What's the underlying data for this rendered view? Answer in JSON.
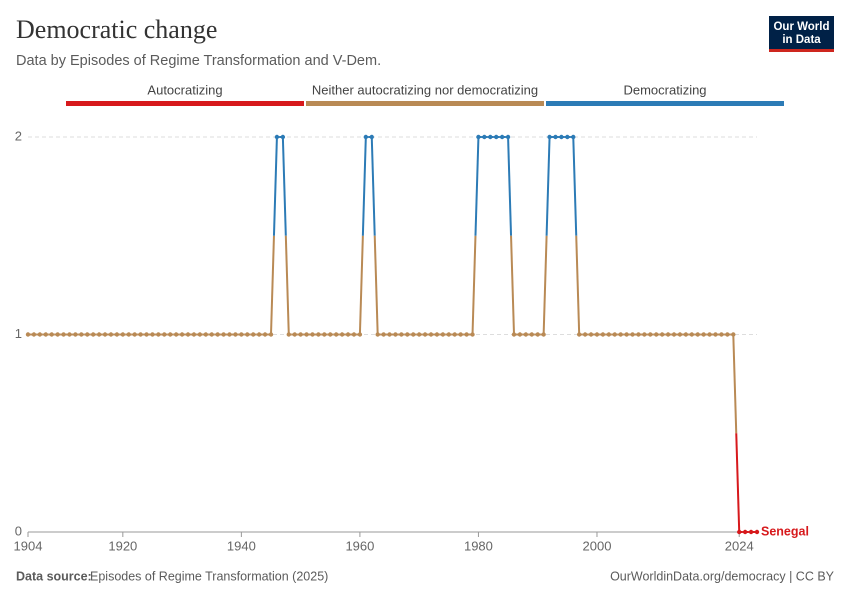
{
  "chart_data": {
    "type": "line",
    "title": "Democratic change",
    "subtitle": "Data by Episodes of Regime Transformation and V-Dem.",
    "logo": [
      "Our World",
      "in Data"
    ],
    "legend": [
      {
        "name": "Autocratizing",
        "color": "#d7191c"
      },
      {
        "name": "Neither autocratizing nor democratizing",
        "color": "#b98a55"
      },
      {
        "name": "Democratizing",
        "color": "#2c7bb6"
      }
    ],
    "x": [
      1904,
      1905,
      1906,
      1907,
      1908,
      1909,
      1910,
      1911,
      1912,
      1913,
      1914,
      1915,
      1916,
      1917,
      1918,
      1919,
      1920,
      1921,
      1922,
      1923,
      1924,
      1925,
      1926,
      1927,
      1928,
      1929,
      1930,
      1931,
      1932,
      1933,
      1934,
      1935,
      1936,
      1937,
      1938,
      1939,
      1940,
      1941,
      1942,
      1943,
      1944,
      1945,
      1946,
      1947,
      1948,
      1949,
      1950,
      1951,
      1952,
      1953,
      1954,
      1955,
      1956,
      1957,
      1958,
      1959,
      1960,
      1961,
      1962,
      1963,
      1964,
      1965,
      1966,
      1967,
      1968,
      1969,
      1970,
      1971,
      1972,
      1973,
      1974,
      1975,
      1976,
      1977,
      1978,
      1979,
      1980,
      1981,
      1982,
      1983,
      1984,
      1985,
      1986,
      1987,
      1988,
      1989,
      1990,
      1991,
      1992,
      1993,
      1994,
      1995,
      1996,
      1997,
      1998,
      1999,
      2000,
      2001,
      2002,
      2003,
      2004,
      2005,
      2006,
      2007,
      2008,
      2009,
      2010,
      2011,
      2012,
      2013,
      2014,
      2015,
      2016,
      2017,
      2018,
      2019,
      2020,
      2021,
      2022,
      2023,
      2024,
      2025,
      2026,
      2027
    ],
    "series": [
      {
        "name": "Senegal",
        "color": "#d7191c",
        "values": [
          1,
          1,
          1,
          1,
          1,
          1,
          1,
          1,
          1,
          1,
          1,
          1,
          1,
          1,
          1,
          1,
          1,
          1,
          1,
          1,
          1,
          1,
          1,
          1,
          1,
          1,
          1,
          1,
          1,
          1,
          1,
          1,
          1,
          1,
          1,
          1,
          1,
          1,
          1,
          1,
          1,
          1,
          2,
          2,
          1,
          1,
          1,
          1,
          1,
          1,
          1,
          1,
          1,
          1,
          1,
          1,
          1,
          2,
          2,
          1,
          1,
          1,
          1,
          1,
          1,
          1,
          1,
          1,
          1,
          1,
          1,
          1,
          1,
          1,
          1,
          1,
          2,
          2,
          2,
          2,
          2,
          2,
          1,
          1,
          1,
          1,
          1,
          1,
          2,
          2,
          2,
          2,
          2,
          1,
          1,
          1,
          1,
          1,
          1,
          1,
          1,
          1,
          1,
          1,
          1,
          1,
          1,
          1,
          1,
          1,
          1,
          1,
          1,
          1,
          1,
          1,
          1,
          1,
          1,
          1,
          0,
          0,
          0,
          0
        ]
      }
    ],
    "xlim": [
      1904,
      2027
    ],
    "xticks": [
      1904,
      1920,
      1940,
      1960,
      1980,
      2000,
      2024
    ],
    "ylim": [
      0,
      2
    ],
    "yticks": [
      0,
      1,
      2
    ],
    "grid": true,
    "source_label": "Data source:",
    "source": "Episodes of Regime Transformation (2025)",
    "footer_right": "OurWorldinData.org/democracy | CC BY"
  }
}
